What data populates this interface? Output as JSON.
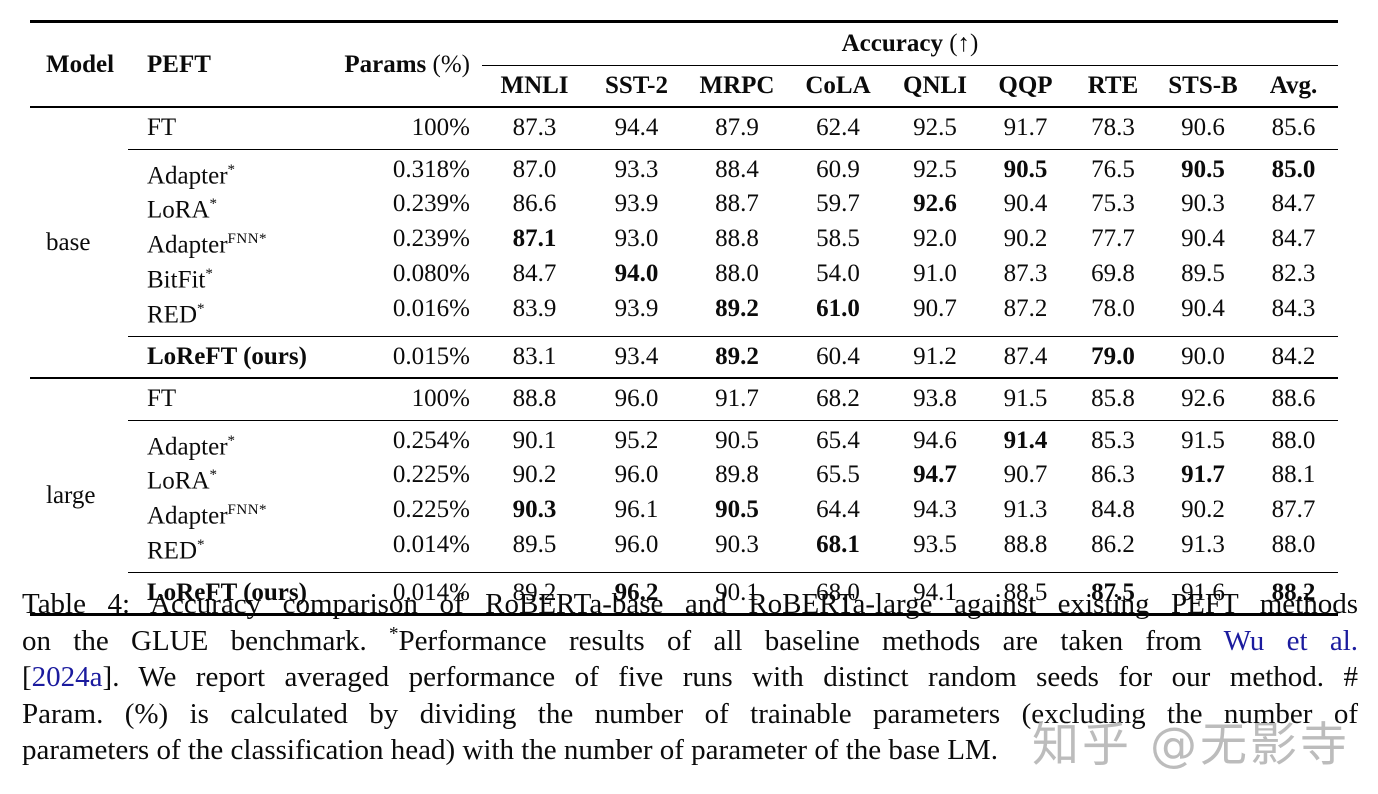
{
  "table": {
    "header": {
      "model": "Model",
      "peft": "PEFT",
      "params_bold": "Params",
      "params_unit": " (%)",
      "accuracy_label": "Accuracy",
      "accuracy_arrow": " (↑)",
      "task_columns": [
        "MNLI",
        "SST-2",
        "MRPC",
        "CoLA",
        "QNLI",
        "QQP",
        "RTE",
        "STS-B",
        "Avg."
      ]
    },
    "sections": [
      {
        "model": "base",
        "groups": [
          {
            "rows": [
              {
                "peft": "FT",
                "sup": "",
                "params": "100%",
                "bold_row": false,
                "values": [
                  "87.3",
                  "94.4",
                  "87.9",
                  "62.4",
                  "92.5",
                  "91.7",
                  "78.3",
                  "90.6",
                  "85.6"
                ],
                "bold": []
              }
            ]
          },
          {
            "rows": [
              {
                "peft": "Adapter",
                "sup": "*",
                "params": "0.318%",
                "bold_row": false,
                "values": [
                  "87.0",
                  "93.3",
                  "88.4",
                  "60.9",
                  "92.5",
                  "90.5",
                  "76.5",
                  "90.5",
                  "85.0"
                ],
                "bold": [
                  5,
                  7,
                  8
                ]
              },
              {
                "peft": "LoRA",
                "sup": "*",
                "params": "0.239%",
                "bold_row": false,
                "values": [
                  "86.6",
                  "93.9",
                  "88.7",
                  "59.7",
                  "92.6",
                  "90.4",
                  "75.3",
                  "90.3",
                  "84.7"
                ],
                "bold": [
                  4
                ]
              },
              {
                "peft": "Adapter",
                "sup": "FNN*",
                "params": "0.239%",
                "bold_row": false,
                "values": [
                  "87.1",
                  "93.0",
                  "88.8",
                  "58.5",
                  "92.0",
                  "90.2",
                  "77.7",
                  "90.4",
                  "84.7"
                ],
                "bold": [
                  0
                ]
              },
              {
                "peft": "BitFit",
                "sup": "*",
                "params": "0.080%",
                "bold_row": false,
                "values": [
                  "84.7",
                  "94.0",
                  "88.0",
                  "54.0",
                  "91.0",
                  "87.3",
                  "69.8",
                  "89.5",
                  "82.3"
                ],
                "bold": [
                  1
                ]
              },
              {
                "peft": "RED",
                "sup": "*",
                "params": "0.016%",
                "bold_row": false,
                "values": [
                  "83.9",
                  "93.9",
                  "89.2",
                  "61.0",
                  "90.7",
                  "87.2",
                  "78.0",
                  "90.4",
                  "84.3"
                ],
                "bold": [
                  2,
                  3
                ]
              }
            ]
          },
          {
            "rows": [
              {
                "peft": "LoReFT (ours)",
                "sup": "",
                "params": "0.015%",
                "bold_row": true,
                "values": [
                  "83.1",
                  "93.4",
                  "89.2",
                  "60.4",
                  "91.2",
                  "87.4",
                  "79.0",
                  "90.0",
                  "84.2"
                ],
                "bold": [
                  2,
                  6
                ]
              }
            ]
          }
        ]
      },
      {
        "model": "large",
        "groups": [
          {
            "rows": [
              {
                "peft": "FT",
                "sup": "",
                "params": "100%",
                "bold_row": false,
                "values": [
                  "88.8",
                  "96.0",
                  "91.7",
                  "68.2",
                  "93.8",
                  "91.5",
                  "85.8",
                  "92.6",
                  "88.6"
                ],
                "bold": []
              }
            ]
          },
          {
            "rows": [
              {
                "peft": "Adapter",
                "sup": "*",
                "params": "0.254%",
                "bold_row": false,
                "values": [
                  "90.1",
                  "95.2",
                  "90.5",
                  "65.4",
                  "94.6",
                  "91.4",
                  "85.3",
                  "91.5",
                  "88.0"
                ],
                "bold": [
                  5
                ]
              },
              {
                "peft": "LoRA",
                "sup": "*",
                "params": "0.225%",
                "bold_row": false,
                "values": [
                  "90.2",
                  "96.0",
                  "89.8",
                  "65.5",
                  "94.7",
                  "90.7",
                  "86.3",
                  "91.7",
                  "88.1"
                ],
                "bold": [
                  4,
                  7
                ]
              },
              {
                "peft": "Adapter",
                "sup": "FNN*",
                "params": "0.225%",
                "bold_row": false,
                "values": [
                  "90.3",
                  "96.1",
                  "90.5",
                  "64.4",
                  "94.3",
                  "91.3",
                  "84.8",
                  "90.2",
                  "87.7"
                ],
                "bold": [
                  0,
                  2
                ]
              },
              {
                "peft": "RED",
                "sup": "*",
                "params": "0.014%",
                "bold_row": false,
                "values": [
                  "89.5",
                  "96.0",
                  "90.3",
                  "68.1",
                  "93.5",
                  "88.8",
                  "86.2",
                  "91.3",
                  "88.0"
                ],
                "bold": [
                  3
                ]
              }
            ]
          },
          {
            "rows": [
              {
                "peft": "LoReFT (ours)",
                "sup": "",
                "params": "0.014%",
                "bold_row": true,
                "values": [
                  "89.2",
                  "96.2",
                  "90.1",
                  "68.0",
                  "94.1",
                  "88.5",
                  "87.5",
                  "91.6",
                  "88.2"
                ],
                "bold": [
                  1,
                  6,
                  8
                ]
              }
            ]
          }
        ]
      }
    ]
  },
  "caption": {
    "lines": [
      {
        "last": false,
        "segments": [
          {
            "t": "Table 4: Accuracy comparison of RoBERTa-base and RoBERTa-large against existing PEFT methods"
          }
        ]
      },
      {
        "last": false,
        "segments": [
          {
            "t": "on the GLUE benchmark. "
          },
          {
            "t": "*",
            "sup": true
          },
          {
            "t": "Performance results of all baseline methods are taken from "
          },
          {
            "t": "Wu et al.",
            "link": true
          }
        ]
      },
      {
        "last": false,
        "segments": [
          {
            "t": "["
          },
          {
            "t": "2024a",
            "link": true
          },
          {
            "t": "]. We report averaged performance of five runs with distinct random seeds for our method. #"
          }
        ]
      },
      {
        "last": false,
        "segments": [
          {
            "t": "Param. (%) is calculated by dividing the number of trainable parameters (excluding the number of"
          }
        ]
      },
      {
        "last": true,
        "segments": [
          {
            "t": "parameters of the classification head) with the number of parameter of the base LM."
          }
        ]
      }
    ]
  },
  "watermark": "知乎 @无影寺"
}
